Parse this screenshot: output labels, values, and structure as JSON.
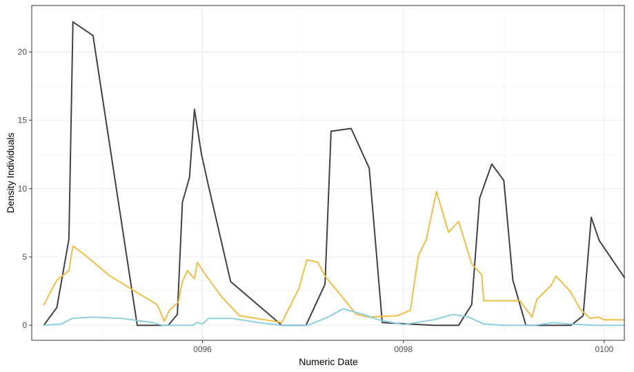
{
  "chart_data": {
    "type": "line",
    "title": "",
    "xlabel": "Numeric Date",
    "ylabel": "Density Individuals",
    "xlim": [
      94.3,
      100.2
    ],
    "ylim": [
      -1.1,
      23.4
    ],
    "x_ticks": [
      96,
      98,
      100
    ],
    "x_tick_labels": [
      "0096",
      "0098",
      "0100"
    ],
    "y_ticks": [
      0,
      5,
      10,
      15,
      20
    ],
    "y_tick_labels": [
      "0",
      "5",
      "10",
      "15",
      "20"
    ],
    "grid": true,
    "legend": "none",
    "series": [
      {
        "color": "#404040",
        "points": [
          [
            94.42,
            0
          ],
          [
            94.55,
            1.3
          ],
          [
            94.67,
            6.3
          ],
          [
            94.71,
            22.2
          ],
          [
            94.91,
            21.2
          ],
          [
            95.35,
            0
          ],
          [
            95.66,
            0
          ],
          [
            95.75,
            0.8
          ],
          [
            95.8,
            9
          ],
          [
            95.87,
            10.8
          ],
          [
            95.92,
            15.8
          ],
          [
            95.99,
            12.5
          ],
          [
            96.06,
            10.2
          ],
          [
            96.28,
            3.2
          ],
          [
            96.79,
            0
          ],
          [
            97.03,
            0
          ],
          [
            97.22,
            3
          ],
          [
            97.28,
            14.2
          ],
          [
            97.48,
            14.4
          ],
          [
            97.66,
            11.5
          ],
          [
            97.79,
            0.2
          ],
          [
            98.3,
            0
          ],
          [
            98.55,
            0
          ],
          [
            98.68,
            1.5
          ],
          [
            98.76,
            9.3
          ],
          [
            98.88,
            11.8
          ],
          [
            99.0,
            10.6
          ],
          [
            99.09,
            3.3
          ],
          [
            99.22,
            0
          ],
          [
            99.67,
            0
          ],
          [
            99.74,
            0.4
          ],
          [
            99.79,
            0.7
          ],
          [
            99.87,
            7.9
          ],
          [
            99.95,
            6.2
          ],
          [
            100.2,
            3.5
          ]
        ]
      },
      {
        "color": "#f0be45",
        "points": [
          [
            94.42,
            1.5
          ],
          [
            94.55,
            3.3
          ],
          [
            94.67,
            4
          ],
          [
            94.71,
            5.8
          ],
          [
            94.82,
            5.2
          ],
          [
            95.08,
            3.6
          ],
          [
            95.55,
            1.5
          ],
          [
            95.62,
            0.3
          ],
          [
            95.67,
            1.1
          ],
          [
            95.76,
            1.7
          ],
          [
            95.8,
            3.2
          ],
          [
            95.85,
            4
          ],
          [
            95.92,
            3.4
          ],
          [
            95.95,
            4.6
          ],
          [
            96.03,
            3.7
          ],
          [
            96.2,
            2
          ],
          [
            96.37,
            0.7
          ],
          [
            96.79,
            0.2
          ],
          [
            96.96,
            2.7
          ],
          [
            97.04,
            4.8
          ],
          [
            97.15,
            4.6
          ],
          [
            97.22,
            3.6
          ],
          [
            97.4,
            2
          ],
          [
            97.53,
            0.8
          ],
          [
            97.66,
            0.6
          ],
          [
            97.94,
            0.7
          ],
          [
            98.07,
            1.1
          ],
          [
            98.15,
            5.1
          ],
          [
            98.23,
            6.3
          ],
          [
            98.33,
            9.8
          ],
          [
            98.45,
            6.8
          ],
          [
            98.55,
            7.6
          ],
          [
            98.68,
            4.5
          ],
          [
            98.78,
            3.7
          ],
          [
            98.8,
            1.8
          ],
          [
            99.0,
            1.8
          ],
          [
            99.16,
            1.8
          ],
          [
            99.28,
            0.6
          ],
          [
            99.33,
            1.9
          ],
          [
            99.47,
            2.9
          ],
          [
            99.52,
            3.6
          ],
          [
            99.66,
            2.5
          ],
          [
            99.76,
            1.2
          ],
          [
            99.86,
            0.5
          ],
          [
            99.94,
            0.6
          ],
          [
            100.0,
            0.4
          ],
          [
            100.2,
            0.4
          ]
        ]
      },
      {
        "color": "#8ccfe0",
        "points": [
          [
            94.42,
            0
          ],
          [
            94.6,
            0.1
          ],
          [
            94.7,
            0.5
          ],
          [
            94.9,
            0.6
          ],
          [
            95.2,
            0.5
          ],
          [
            95.5,
            0.2
          ],
          [
            95.6,
            0
          ],
          [
            95.9,
            0
          ],
          [
            95.95,
            0.2
          ],
          [
            96.0,
            0.1
          ],
          [
            96.06,
            0.5
          ],
          [
            96.3,
            0.5
          ],
          [
            96.55,
            0.2
          ],
          [
            96.79,
            0
          ],
          [
            97.05,
            0
          ],
          [
            97.25,
            0.6
          ],
          [
            97.4,
            1.2
          ],
          [
            97.6,
            0.8
          ],
          [
            97.75,
            0.4
          ],
          [
            98.0,
            0.05
          ],
          [
            98.3,
            0.4
          ],
          [
            98.5,
            0.8
          ],
          [
            98.65,
            0.6
          ],
          [
            98.8,
            0.1
          ],
          [
            99.0,
            0
          ],
          [
            99.3,
            0
          ],
          [
            99.5,
            0.2
          ],
          [
            99.65,
            0.1
          ],
          [
            99.9,
            0
          ],
          [
            100.2,
            0
          ]
        ]
      }
    ]
  }
}
